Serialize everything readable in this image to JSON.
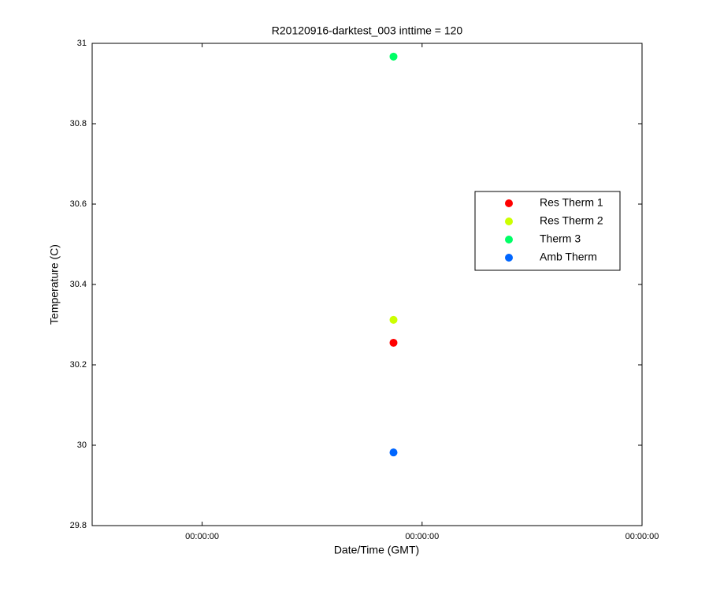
{
  "chart_data": {
    "type": "scatter",
    "title": "R20120916-darktest_003 inttime = 120",
    "xlabel": "Date/Time (GMT)",
    "ylabel": "Temperature (C)",
    "x": [
      1.87
    ],
    "xlim": [
      0.5,
      3
    ],
    "xticks": [
      {
        "value": 1,
        "label": "00:00:00"
      },
      {
        "value": 2,
        "label": "00:00:00"
      },
      {
        "value": 3,
        "label": "00:00:00"
      }
    ],
    "ylim": [
      29.8,
      31
    ],
    "yticks": [
      29.8,
      30,
      30.2,
      30.4,
      30.6,
      30.8,
      31
    ],
    "legend": "east",
    "series": [
      {
        "name": "Res Therm 1",
        "color": "#ff0000",
        "values": [
          30.255
        ]
      },
      {
        "name": "Res Therm 2",
        "color": "#ccff00",
        "values": [
          30.312
        ]
      },
      {
        "name": "Therm 3",
        "color": "#00ff66",
        "values": [
          30.967
        ]
      },
      {
        "name": "Amb Therm",
        "color": "#0066ff",
        "values": [
          29.982
        ]
      }
    ]
  }
}
